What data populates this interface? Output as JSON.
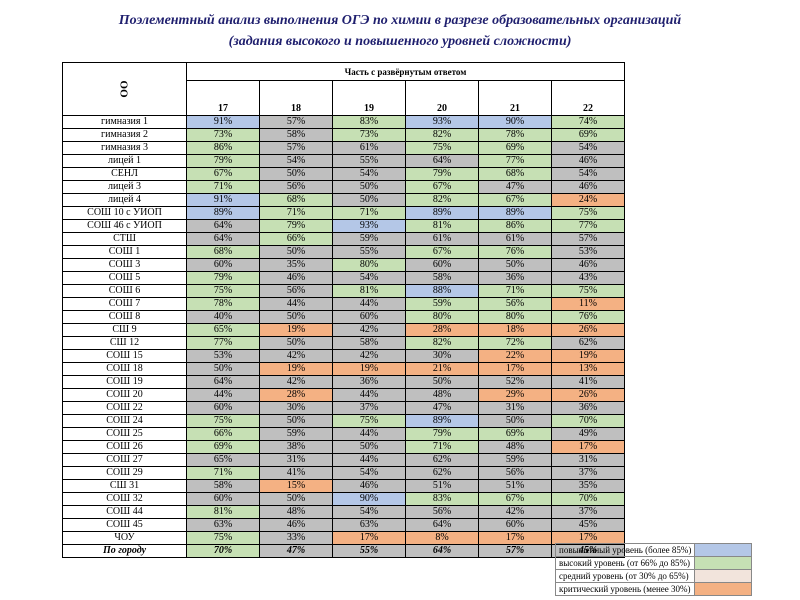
{
  "header": {
    "title": [
      "Поэлементный анализ выполнения ОГЭ по химии в разрезе образовательных организаций",
      "(задания высокого и повышенного уровней сложности)"
    ]
  },
  "table": {
    "corner": "ОО",
    "group": "Часть с развёрнутым ответом",
    "columns": [
      "17",
      "18",
      "19",
      "20",
      "21",
      "22"
    ],
    "rows": [
      {
        "name": "гимназия 1",
        "cells": [
          "91%",
          "57%",
          "83%",
          "93%",
          "90%",
          "74%"
        ],
        "colors": [
          "#b4c7e7",
          "#bfbfbf",
          "#c6e0b4",
          "#b4c7e7",
          "#b4c7e7",
          "#c6e0b4"
        ]
      },
      {
        "name": "гимназия 2",
        "cells": [
          "73%",
          "58%",
          "73%",
          "82%",
          "78%",
          "69%"
        ],
        "colors": [
          "#c6e0b4",
          "#bfbfbf",
          "#c6e0b4",
          "#c6e0b4",
          "#c6e0b4",
          "#c6e0b4"
        ]
      },
      {
        "name": "гимназия 3",
        "cells": [
          "86%",
          "57%",
          "61%",
          "75%",
          "69%",
          "54%"
        ],
        "colors": [
          "#c6e0b4",
          "#bfbfbf",
          "#bfbfbf",
          "#c6e0b4",
          "#c6e0b4",
          "#bfbfbf"
        ]
      },
      {
        "name": "лицей 1",
        "cells": [
          "79%",
          "54%",
          "55%",
          "64%",
          "77%",
          "46%"
        ],
        "colors": [
          "#c6e0b4",
          "#bfbfbf",
          "#bfbfbf",
          "#bfbfbf",
          "#c6e0b4",
          "#bfbfbf"
        ]
      },
      {
        "name": "СЕНЛ",
        "cells": [
          "67%",
          "50%",
          "54%",
          "79%",
          "68%",
          "54%"
        ],
        "colors": [
          "#c6e0b4",
          "#bfbfbf",
          "#bfbfbf",
          "#c6e0b4",
          "#c6e0b4",
          "#bfbfbf"
        ]
      },
      {
        "name": "лицей 3",
        "cells": [
          "71%",
          "56%",
          "50%",
          "67%",
          "47%",
          "46%"
        ],
        "colors": [
          "#c6e0b4",
          "#bfbfbf",
          "#bfbfbf",
          "#c6e0b4",
          "#bfbfbf",
          "#bfbfbf"
        ]
      },
      {
        "name": "лицей 4",
        "cells": [
          "91%",
          "68%",
          "50%",
          "82%",
          "67%",
          "24%"
        ],
        "colors": [
          "#b4c7e7",
          "#c6e0b4",
          "#bfbfbf",
          "#c6e0b4",
          "#c6e0b4",
          "#f4b183"
        ]
      },
      {
        "name": "СОШ 10 с УИОП",
        "cells": [
          "89%",
          "71%",
          "71%",
          "89%",
          "89%",
          "75%"
        ],
        "colors": [
          "#b4c7e7",
          "#c6e0b4",
          "#c6e0b4",
          "#b4c7e7",
          "#b4c7e7",
          "#c6e0b4"
        ]
      },
      {
        "name": "СОШ 46 с УИОП",
        "cells": [
          "64%",
          "79%",
          "93%",
          "81%",
          "86%",
          "77%"
        ],
        "colors": [
          "#bfbfbf",
          "#c6e0b4",
          "#b4c7e7",
          "#c6e0b4",
          "#c6e0b4",
          "#c6e0b4"
        ]
      },
      {
        "name": "СТШ",
        "cells": [
          "64%",
          "66%",
          "59%",
          "61%",
          "61%",
          "57%"
        ],
        "colors": [
          "#bfbfbf",
          "#c6e0b4",
          "#bfbfbf",
          "#bfbfbf",
          "#bfbfbf",
          "#bfbfbf"
        ]
      },
      {
        "name": "СОШ 1",
        "cells": [
          "68%",
          "50%",
          "55%",
          "67%",
          "76%",
          "53%"
        ],
        "colors": [
          "#c6e0b4",
          "#bfbfbf",
          "#bfbfbf",
          "#c6e0b4",
          "#c6e0b4",
          "#bfbfbf"
        ]
      },
      {
        "name": "СОШ 3",
        "cells": [
          "60%",
          "35%",
          "80%",
          "60%",
          "50%",
          "46%"
        ],
        "colors": [
          "#bfbfbf",
          "#bfbfbf",
          "#c6e0b4",
          "#bfbfbf",
          "#bfbfbf",
          "#bfbfbf"
        ]
      },
      {
        "name": "СОШ 5",
        "cells": [
          "79%",
          "46%",
          "54%",
          "58%",
          "36%",
          "43%"
        ],
        "colors": [
          "#c6e0b4",
          "#bfbfbf",
          "#bfbfbf",
          "#bfbfbf",
          "#bfbfbf",
          "#bfbfbf"
        ]
      },
      {
        "name": "СОШ 6",
        "cells": [
          "75%",
          "56%",
          "81%",
          "88%",
          "71%",
          "75%"
        ],
        "colors": [
          "#c6e0b4",
          "#bfbfbf",
          "#c6e0b4",
          "#b4c7e7",
          "#c6e0b4",
          "#c6e0b4"
        ]
      },
      {
        "name": "СОШ 7",
        "cells": [
          "78%",
          "44%",
          "44%",
          "59%",
          "56%",
          "11%"
        ],
        "colors": [
          "#c6e0b4",
          "#bfbfbf",
          "#bfbfbf",
          "#c6e0b4",
          "#c6e0b4",
          "#f4b183"
        ]
      },
      {
        "name": "СОШ 8",
        "cells": [
          "40%",
          "50%",
          "60%",
          "80%",
          "80%",
          "76%"
        ],
        "colors": [
          "#bfbfbf",
          "#bfbfbf",
          "#bfbfbf",
          "#c6e0b4",
          "#c6e0b4",
          "#c6e0b4"
        ]
      },
      {
        "name": "СШ 9",
        "cells": [
          "65%",
          "19%",
          "42%",
          "28%",
          "18%",
          "26%"
        ],
        "colors": [
          "#c6e0b4",
          "#f4b183",
          "#bfbfbf",
          "#f4b183",
          "#f4b183",
          "#f4b183"
        ]
      },
      {
        "name": "СШ 12",
        "cells": [
          "77%",
          "50%",
          "58%",
          "82%",
          "72%",
          "62%"
        ],
        "colors": [
          "#c6e0b4",
          "#bfbfbf",
          "#bfbfbf",
          "#c6e0b4",
          "#c6e0b4",
          "#bfbfbf"
        ]
      },
      {
        "name": "СОШ 15",
        "cells": [
          "53%",
          "42%",
          "42%",
          "30%",
          "22%",
          "19%"
        ],
        "colors": [
          "#bfbfbf",
          "#bfbfbf",
          "#bfbfbf",
          "#bfbfbf",
          "#f4b183",
          "#f4b183"
        ]
      },
      {
        "name": "СОШ 18",
        "cells": [
          "50%",
          "19%",
          "19%",
          "21%",
          "17%",
          "13%"
        ],
        "colors": [
          "#bfbfbf",
          "#f4b183",
          "#f4b183",
          "#f4b183",
          "#f4b183",
          "#f4b183"
        ]
      },
      {
        "name": "СОШ 19",
        "cells": [
          "64%",
          "42%",
          "36%",
          "50%",
          "52%",
          "41%"
        ],
        "colors": [
          "#bfbfbf",
          "#bfbfbf",
          "#bfbfbf",
          "#bfbfbf",
          "#bfbfbf",
          "#bfbfbf"
        ]
      },
      {
        "name": "СОШ 20",
        "cells": [
          "44%",
          "28%",
          "44%",
          "48%",
          "29%",
          "26%"
        ],
        "colors": [
          "#bfbfbf",
          "#f4b183",
          "#bfbfbf",
          "#bfbfbf",
          "#f4b183",
          "#f4b183"
        ]
      },
      {
        "name": "СОШ 22",
        "cells": [
          "60%",
          "30%",
          "37%",
          "47%",
          "31%",
          "36%"
        ],
        "colors": [
          "#bfbfbf",
          "#bfbfbf",
          "#bfbfbf",
          "#bfbfbf",
          "#bfbfbf",
          "#bfbfbf"
        ]
      },
      {
        "name": "СОШ 24",
        "cells": [
          "75%",
          "50%",
          "75%",
          "89%",
          "50%",
          "70%"
        ],
        "colors": [
          "#c6e0b4",
          "#bfbfbf",
          "#c6e0b4",
          "#b4c7e7",
          "#bfbfbf",
          "#c6e0b4"
        ]
      },
      {
        "name": "СОШ 25",
        "cells": [
          "66%",
          "59%",
          "44%",
          "79%",
          "69%",
          "49%"
        ],
        "colors": [
          "#c6e0b4",
          "#bfbfbf",
          "#bfbfbf",
          "#c6e0b4",
          "#c6e0b4",
          "#bfbfbf"
        ]
      },
      {
        "name": "СОШ 26",
        "cells": [
          "69%",
          "38%",
          "50%",
          "71%",
          "48%",
          "17%"
        ],
        "colors": [
          "#c6e0b4",
          "#bfbfbf",
          "#bfbfbf",
          "#c6e0b4",
          "#bfbfbf",
          "#f4b183"
        ]
      },
      {
        "name": "СОШ 27",
        "cells": [
          "65%",
          "31%",
          "44%",
          "62%",
          "59%",
          "31%"
        ],
        "colors": [
          "#bfbfbf",
          "#bfbfbf",
          "#bfbfbf",
          "#bfbfbf",
          "#bfbfbf",
          "#bfbfbf"
        ]
      },
      {
        "name": "СОШ 29",
        "cells": [
          "71%",
          "41%",
          "54%",
          "62%",
          "56%",
          "37%"
        ],
        "colors": [
          "#c6e0b4",
          "#bfbfbf",
          "#bfbfbf",
          "#bfbfbf",
          "#bfbfbf",
          "#bfbfbf"
        ]
      },
      {
        "name": "СШ 31",
        "cells": [
          "58%",
          "15%",
          "46%",
          "51%",
          "51%",
          "35%"
        ],
        "colors": [
          "#bfbfbf",
          "#f4b183",
          "#bfbfbf",
          "#bfbfbf",
          "#bfbfbf",
          "#bfbfbf"
        ]
      },
      {
        "name": "СОШ 32",
        "cells": [
          "60%",
          "50%",
          "90%",
          "83%",
          "67%",
          "70%"
        ],
        "colors": [
          "#bfbfbf",
          "#bfbfbf",
          "#b4c7e7",
          "#c6e0b4",
          "#c6e0b4",
          "#c6e0b4"
        ]
      },
      {
        "name": "СОШ 44",
        "cells": [
          "81%",
          "48%",
          "54%",
          "56%",
          "42%",
          "37%"
        ],
        "colors": [
          "#c6e0b4",
          "#bfbfbf",
          "#bfbfbf",
          "#bfbfbf",
          "#bfbfbf",
          "#bfbfbf"
        ]
      },
      {
        "name": "СОШ 45",
        "cells": [
          "63%",
          "46%",
          "63%",
          "64%",
          "60%",
          "45%"
        ],
        "colors": [
          "#bfbfbf",
          "#bfbfbf",
          "#bfbfbf",
          "#bfbfbf",
          "#bfbfbf",
          "#bfbfbf"
        ]
      },
      {
        "name": "ЧОУ",
        "cells": [
          "75%",
          "33%",
          "17%",
          "8%",
          "17%",
          "17%"
        ],
        "colors": [
          "#c6e0b4",
          "#bfbfbf",
          "#f4b183",
          "#f4b183",
          "#f4b183",
          "#f4b183"
        ]
      }
    ],
    "total": {
      "name": "По городу",
      "cells": [
        "70%",
        "47%",
        "55%",
        "64%",
        "57%",
        "45%"
      ],
      "colors": [
        "#c6e0b4",
        "#bfbfbf",
        "#bfbfbf",
        "#bfbfbf",
        "#bfbfbf",
        "#bfbfbf"
      ]
    }
  },
  "legend": [
    {
      "label": "повышенный уровень (более 85%)",
      "color": "#b4c7e7"
    },
    {
      "label": "высокий уровень (от 66% до 85%)",
      "color": "#c6e0b4"
    },
    {
      "label": "средний уровень (от 30% до 65%)",
      "color": "#f2e4dc"
    },
    {
      "label": "критический уровень (менее 30%)",
      "color": "#f4b183"
    }
  ]
}
